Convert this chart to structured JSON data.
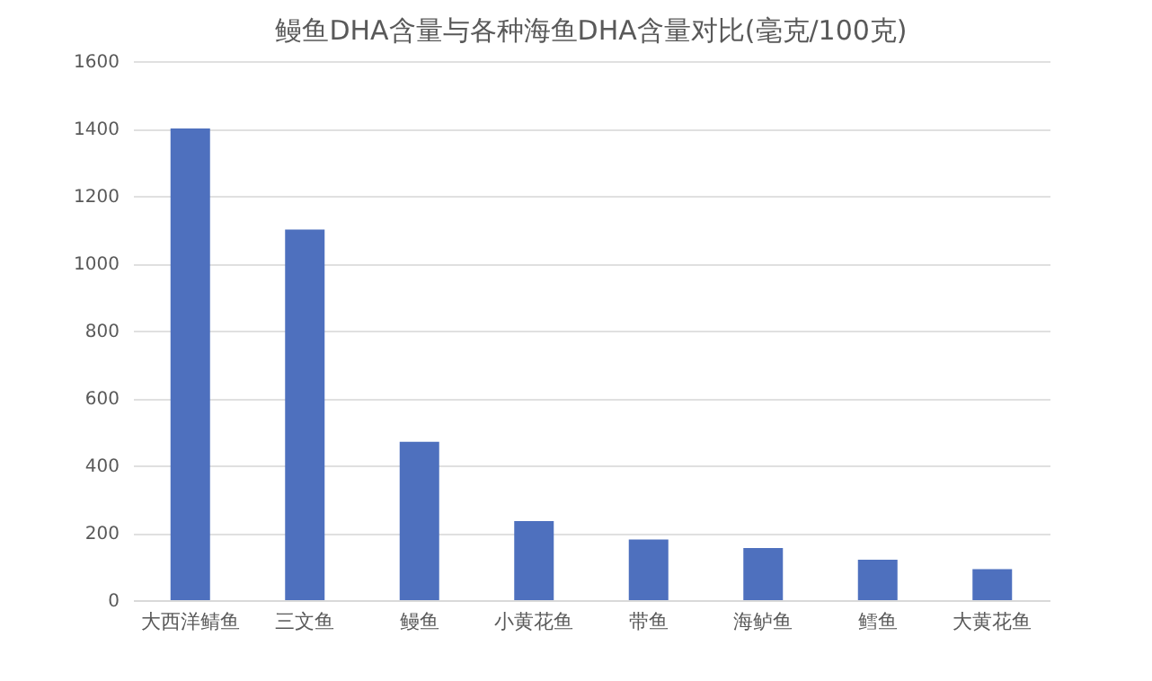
{
  "chart_data": {
    "type": "bar",
    "title": "鳗鱼DHA含量与各种海鱼DHA含量对比(毫克/100克)",
    "categories": [
      "大西洋鲭鱼",
      "三文鱼",
      "鳗鱼",
      "小黄花鱼",
      "带鱼",
      "海鲈鱼",
      "鳕鱼",
      "大黄花鱼"
    ],
    "values": [
      1400,
      1100,
      470,
      235,
      180,
      155,
      120,
      92
    ],
    "color": "#4e70be",
    "ylim": [
      0,
      1600
    ],
    "yticks": [
      0,
      200,
      400,
      600,
      800,
      1000,
      1200,
      1400,
      1600
    ],
    "grid": "y"
  }
}
